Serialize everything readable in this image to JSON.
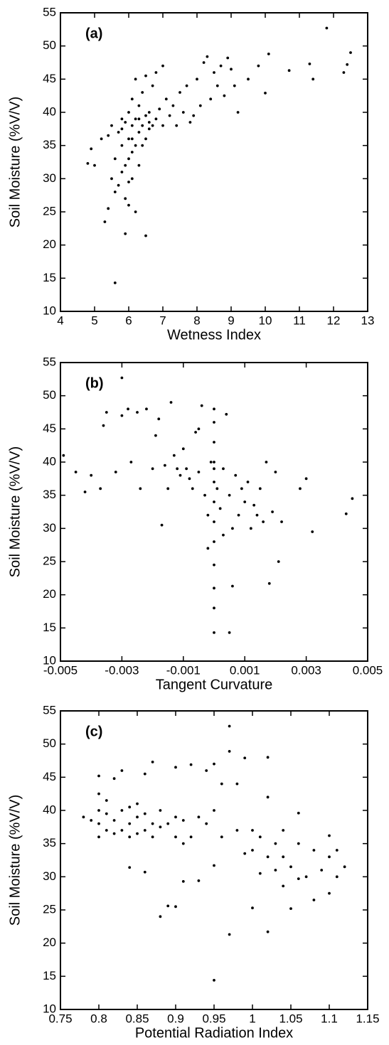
{
  "chart_data": [
    {
      "type": "scatter",
      "annotation": "(a)",
      "xlabel": "Wetness Index",
      "ylabel": "Soil Moisture (%V/V)",
      "color": "#000000",
      "xlim": [
        4,
        13
      ],
      "xticks": [
        4,
        5,
        6,
        7,
        8,
        9,
        10,
        11,
        12,
        13
      ],
      "ylim": [
        10,
        55
      ],
      "yticks": [
        10,
        15,
        20,
        25,
        30,
        35,
        40,
        45,
        50,
        55
      ],
      "x": [
        4.8,
        4.9,
        5.0,
        5.2,
        5.3,
        5.4,
        5.5,
        5.5,
        5.6,
        5.6,
        5.7,
        5.7,
        5.8,
        5.8,
        5.8,
        5.9,
        5.9,
        5.9,
        6.0,
        6.0,
        6.0,
        6.0,
        6.1,
        6.1,
        6.1,
        6.1,
        6.2,
        6.2,
        6.2,
        6.3,
        6.3,
        6.3,
        6.4,
        6.4,
        6.5,
        6.5,
        6.5,
        6.6,
        6.6,
        6.7,
        6.7,
        6.8,
        6.8,
        6.9,
        7.0,
        7.0,
        7.1,
        7.2,
        7.3,
        7.4,
        7.5,
        7.6,
        7.7,
        7.8,
        7.9,
        8.0,
        8.1,
        8.2,
        8.3,
        8.4,
        8.5,
        8.6,
        8.7,
        8.8,
        8.9,
        9.0,
        9.1,
        9.2,
        9.5,
        9.8,
        10.0,
        10.1,
        10.7,
        11.3,
        11.4,
        11.8,
        12.3,
        12.4,
        12.5,
        5.6,
        5.9,
        6.5,
        6.0,
        6.2,
        5.4,
        6.3,
        6.1,
        5.8,
        6.6,
        6.4
      ],
      "values": [
        32.3,
        34.5,
        32.0,
        36,
        23.5,
        25.5,
        38,
        30,
        14.3,
        33,
        37,
        29,
        39,
        35,
        31,
        38.5,
        32,
        27,
        40,
        36,
        33,
        29.5,
        42,
        38,
        34,
        30,
        45,
        39,
        35,
        41,
        37,
        32,
        43,
        38,
        45.5,
        39.5,
        36,
        40,
        37.5,
        44,
        38,
        46,
        39,
        40.5,
        47,
        38,
        42,
        39.5,
        41,
        38,
        43,
        40,
        44,
        38.5,
        39.5,
        45,
        41,
        47.5,
        48.4,
        42,
        46,
        44,
        47,
        42.5,
        48.2,
        46.5,
        44,
        40,
        45,
        47,
        42.9,
        48.8,
        46.3,
        47.3,
        45,
        52.7,
        46,
        47.2,
        49,
        28,
        21.7,
        21.4,
        26,
        25,
        36.5,
        39,
        36,
        37.5,
        38.5,
        35
      ]
    },
    {
      "type": "scatter",
      "annotation": "(b)",
      "xlabel": "Tangent Curvature",
      "ylabel": "Soil Moisture (%V/V)",
      "color": "#000000",
      "xlim": [
        -0.005,
        0.005
      ],
      "xticks": [
        -0.005,
        -0.003,
        -0.001,
        0.001,
        0.003,
        0.005
      ],
      "ylim": [
        10,
        55
      ],
      "yticks": [
        10,
        15,
        20,
        25,
        30,
        35,
        40,
        45,
        50,
        55
      ],
      "x": [
        -0.0049,
        -0.0045,
        -0.0042,
        -0.004,
        -0.0037,
        -0.0035,
        -0.0036,
        -0.0032,
        -0.003,
        -0.003,
        -0.0028,
        -0.0027,
        -0.0025,
        -0.0024,
        -0.0022,
        -0.002,
        -0.0019,
        -0.0018,
        -0.0017,
        -0.0016,
        -0.0015,
        -0.0014,
        -0.0013,
        -0.0012,
        -0.0011,
        -0.001,
        -0.0009,
        -0.0008,
        -0.0007,
        -0.0006,
        -0.0005,
        -0.0004,
        -0.0003,
        -0.0002,
        -0.0001,
        0,
        0,
        0,
        0,
        0,
        0,
        0,
        0,
        0,
        0,
        0,
        0,
        0.0001,
        0.0002,
        0.0003,
        0.0004,
        0.0005,
        0.0005,
        0.0006,
        0.0006,
        0.0007,
        0.0008,
        0.0009,
        0.001,
        0.0011,
        0.0012,
        0.0013,
        0.0014,
        0.0015,
        0.0016,
        0.0017,
        0.0018,
        0.0019,
        0.002,
        0.0021,
        0.0022,
        0.0028,
        0.0032,
        0.003,
        0.0043,
        0.0045,
        -0.0005,
        0,
        0.0003,
        -0.0002
      ],
      "values": [
        41,
        38.5,
        35.5,
        38,
        36,
        47.5,
        45.5,
        38.5,
        52.7,
        47,
        48,
        40,
        47.5,
        36,
        48,
        39,
        44,
        46.5,
        30.5,
        39.5,
        36,
        49,
        41,
        39,
        38,
        42,
        39,
        37.5,
        36,
        44.5,
        38.5,
        48.5,
        35,
        27,
        40,
        14.3,
        18,
        21,
        24.5,
        28,
        31,
        34,
        37,
        40,
        43,
        46,
        48,
        36,
        33,
        39,
        47.2,
        14.3,
        35,
        21.3,
        30,
        38,
        32,
        36,
        34,
        37,
        30,
        33.5,
        32,
        36,
        31,
        40,
        21.7,
        32.5,
        38.5,
        25,
        31,
        36,
        29.5,
        37.5,
        32.2,
        34.5,
        45,
        39,
        29,
        32
      ]
    },
    {
      "type": "scatter",
      "annotation": "(c)",
      "xlabel": "Potential Radiation Index",
      "ylabel": "Soil Moisture (%V/V)",
      "color": "#000000",
      "xlim": [
        0.75,
        1.15
      ],
      "xticks": [
        0.75,
        0.8,
        0.85,
        0.9,
        0.95,
        1,
        1.05,
        1.1,
        1.15
      ],
      "ylim": [
        10,
        55
      ],
      "yticks": [
        10,
        15,
        20,
        25,
        30,
        35,
        40,
        45,
        50,
        55
      ],
      "x": [
        0.78,
        0.79,
        0.8,
        0.8,
        0.8,
        0.8,
        0.8,
        0.81,
        0.81,
        0.81,
        0.82,
        0.82,
        0.82,
        0.83,
        0.83,
        0.83,
        0.84,
        0.84,
        0.84,
        0.84,
        0.85,
        0.85,
        0.85,
        0.86,
        0.86,
        0.86,
        0.86,
        0.87,
        0.87,
        0.87,
        0.88,
        0.88,
        0.88,
        0.89,
        0.89,
        0.9,
        0.9,
        0.9,
        0.9,
        0.91,
        0.91,
        0.91,
        0.92,
        0.92,
        0.93,
        0.93,
        0.94,
        0.94,
        0.95,
        0.95,
        0.95,
        0.95,
        0.96,
        0.96,
        0.97,
        0.97,
        0.97,
        0.98,
        0.98,
        0.99,
        0.99,
        1,
        1,
        1,
        1.01,
        1.01,
        1.02,
        1.02,
        1.02,
        1.03,
        1.03,
        1.04,
        1.04,
        1.05,
        1.05,
        1.06,
        1.06,
        1.06,
        1.07,
        1.08,
        1.08,
        1.09,
        1.1,
        1.1,
        1.1,
        1.11,
        1.11,
        1.12,
        1.02,
        1.04
      ],
      "values": [
        39,
        38.5,
        36,
        38,
        40,
        42.5,
        45.2,
        37,
        39.5,
        41.5,
        36.5,
        38.5,
        44.8,
        37,
        40,
        46,
        31.4,
        36,
        38,
        40.5,
        36.5,
        39,
        41,
        30.7,
        37,
        39.5,
        45.5,
        36,
        38,
        47.3,
        24,
        37.5,
        40,
        25.6,
        38,
        25.5,
        36,
        39,
        46.5,
        29.3,
        35,
        38.5,
        36,
        46.9,
        29.4,
        39,
        38,
        46,
        14.4,
        31.7,
        40,
        47,
        36,
        44,
        21.3,
        48.9,
        52.7,
        37,
        44,
        33.5,
        47.9,
        25.3,
        34,
        37,
        30.5,
        36,
        21.7,
        33,
        48,
        31,
        35,
        28.6,
        33,
        25.2,
        31.5,
        29.7,
        35,
        39.6,
        30,
        26.5,
        34,
        31,
        27.5,
        33,
        36.2,
        30,
        34,
        31.5,
        42,
        37
      ]
    }
  ]
}
